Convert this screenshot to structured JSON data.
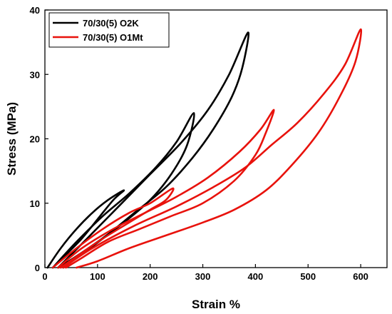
{
  "chart_data": {
    "type": "line",
    "title": "",
    "xlabel": "Strain %",
    "ylabel": "Stress (MPa)",
    "xlim": [
      0,
      650
    ],
    "ylim": [
      0,
      40
    ],
    "xticks": [
      0,
      100,
      200,
      300,
      400,
      500,
      600
    ],
    "yticks": [
      0,
      10,
      20,
      30,
      40
    ],
    "grid": false,
    "legend_position": "top-left",
    "series": [
      {
        "name": "70/30(5) O2K",
        "color": "#000000",
        "cycles": [
          {
            "x": [
              5,
              30,
              60,
              90,
              120,
              150,
              130,
              100,
              70,
              40,
              15
            ],
            "y": [
              0,
              3,
              6,
              8.5,
              10.5,
              12,
              10.5,
              7.5,
              4.5,
              2,
              0
            ]
          },
          {
            "x": [
              15,
              60,
              110,
              160,
              210,
              250,
              283,
              270,
              240,
              200,
              150,
              100,
              55,
              25
            ],
            "y": [
              0,
              4,
              8,
              11.5,
              15.5,
              19.5,
              24,
              19,
              14.5,
              10.5,
              7,
              4,
              1.5,
              0
            ]
          },
          {
            "x": [
              25,
              80,
              140,
              200,
              260,
              310,
              350,
              386,
              375,
              355,
              320,
              280,
              230,
              170,
              110,
              60,
              35
            ],
            "y": [
              0,
              4.5,
              9.5,
              14.5,
              19.5,
              24.5,
              30,
              36.5,
              31,
              26.5,
              21.5,
              17,
              12.5,
              8.5,
              4.5,
              1.5,
              0
            ]
          }
        ]
      },
      {
        "name": "70/30(5) O1Mt",
        "color": "#e8120c",
        "cycles": [
          {
            "x": [
              15,
              60,
              110,
              160,
              200,
              243,
              230,
              200,
              160,
              110,
              65,
              30
            ],
            "y": [
              0,
              3,
              6,
              8.5,
              10,
              12.3,
              10.5,
              9,
              7,
              4.5,
              2,
              0
            ]
          },
          {
            "x": [
              25,
              70,
              130,
              190,
              250,
              310,
              370,
              410,
              435,
              420,
              400,
              360,
              300,
              240,
              180,
              120,
              70,
              40
            ],
            "y": [
              0,
              3,
              6,
              8.5,
              11,
              14,
              18,
              21.5,
              24.5,
              21,
              17.5,
              13.5,
              10,
              8,
              6,
              4,
              1.5,
              0
            ]
          },
          {
            "x": [
              35,
              90,
              170,
              250,
              320,
              380,
              430,
              480,
              530,
              570,
              600,
              590,
              560,
              520,
              470,
              420,
              360,
              300,
              230,
              160,
              100,
              60
            ],
            "y": [
              0,
              3,
              6.5,
              9.5,
              12.5,
              15.5,
              19,
              22.5,
              27,
              31.5,
              37,
              32,
              26.5,
              21,
              16,
              12,
              9,
              7,
              5,
              3,
              1,
              0
            ]
          }
        ]
      }
    ]
  }
}
